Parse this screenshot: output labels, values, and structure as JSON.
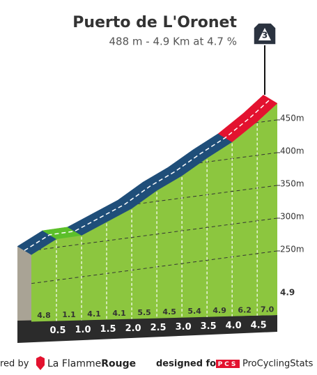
{
  "chart_data": {
    "type": "area",
    "title": "Puerto de L'Oronet",
    "subtitle": "488 m - 4.9 Km at 4.7 %",
    "category": "3",
    "x": [
      0,
      0.5,
      1.0,
      1.5,
      2.0,
      2.5,
      3.0,
      3.5,
      4.0,
      4.5,
      4.9
    ],
    "x_labels": [
      "0.5",
      "1.0",
      "1.5",
      "2.0",
      "2.5",
      "3.0",
      "3.5",
      "4.0",
      "4.5",
      "4.9"
    ],
    "xlim": [
      0,
      4.9
    ],
    "elevation": [
      257,
      281,
      286.5,
      307,
      327.5,
      355,
      377.5,
      404.5,
      429,
      460,
      488
    ],
    "gradients": [
      4.8,
      1.1,
      4.1,
      4.1,
      5.5,
      4.5,
      5.4,
      4.9,
      6.2,
      7.0
    ],
    "gradient_labels": [
      "4.8",
      "1.1",
      "4.1",
      "4.1",
      "5.5",
      "4.5",
      "5.4",
      "4.9",
      "6.2",
      "7.0"
    ],
    "segment_colors": [
      "#1f4e79",
      "#5cbf2a",
      "#1f4e79",
      "#1f4e79",
      "#1f4e79",
      "#1f4e79",
      "#1f4e79",
      "#1f4e79",
      "#e3122f",
      "#e3122f"
    ],
    "face_color": "#8cc63f",
    "ylim": [
      250,
      450
    ],
    "yticks": [
      {
        "value": 250,
        "label": "250m"
      },
      {
        "value": 300,
        "label": "300m"
      },
      {
        "value": 350,
        "label": "350m"
      },
      {
        "value": 400,
        "label": "400m"
      },
      {
        "value": 450,
        "label": "450m"
      }
    ],
    "grid": true
  },
  "footer": {
    "left": "red by",
    "brand_a": "La Flamme",
    "brand_b": "Rouge",
    "designed": "designed for",
    "pcs": "PCS",
    "site": "ProCyclingStats"
  }
}
